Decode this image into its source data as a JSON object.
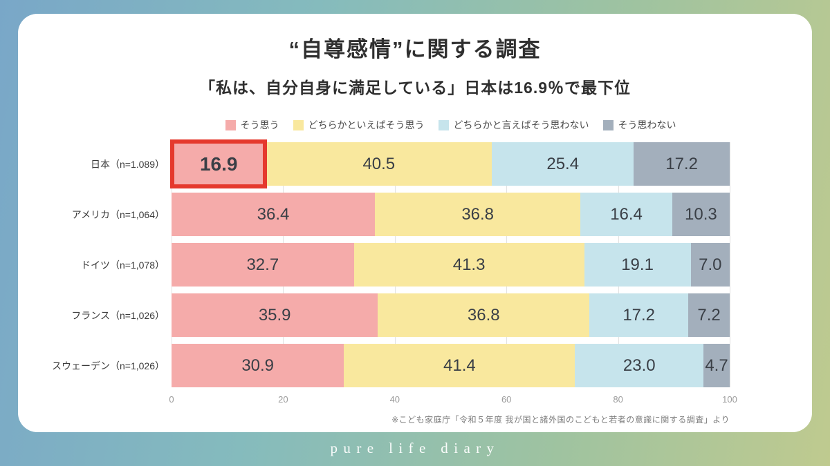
{
  "header": {
    "title": "“自尊感情”に関する調査",
    "subtitle": "「私は、自分自身に満足している」日本は16.9％で最下位"
  },
  "source": "※こども家庭庁「令和５年度 我が国と諸外国のこどもと若者の意識に関する調査」より",
  "footer": "pure life diary",
  "theme": {
    "card_background": "#ffffff",
    "highlight_red": "#e5392d",
    "value_text": "#3a3f46",
    "tick_text": "#9b9b9b",
    "background_gradient": [
      "#79a7c8",
      "#85bbbd",
      "#9fc3a0",
      "#bfca8f"
    ]
  },
  "chart_data": {
    "type": "bar",
    "subtype": "horizontal-stacked",
    "title": "“自尊感情”に関する調査",
    "xlabel": "",
    "ylabel": "",
    "xlim": [
      0,
      100
    ],
    "x_ticks": [
      0,
      20,
      40,
      60,
      80,
      100
    ],
    "grid": true,
    "legend_position": "top",
    "categories": [
      "日本（n=1.089）",
      "アメリカ（n=1,064）",
      "ドイツ（n=1,078）",
      "フランス（n=1,026）",
      "スウェーデン（n=1,026）"
    ],
    "series": [
      {
        "name": "そう思う",
        "color": "#f5abaa",
        "values": [
          16.9,
          36.4,
          32.7,
          35.9,
          30.9
        ]
      },
      {
        "name": "どちらかといえばそう思う",
        "color": "#f9e89e",
        "values": [
          40.5,
          36.8,
          41.3,
          36.8,
          41.4
        ]
      },
      {
        "name": "どちらかと言えばそう思わない",
        "color": "#c6e4ec",
        "values": [
          25.4,
          16.4,
          19.1,
          17.2,
          23.0
        ]
      },
      {
        "name": "そう思わない",
        "color": "#a3afbc",
        "values": [
          17.2,
          10.3,
          7.0,
          7.2,
          4.7
        ]
      }
    ],
    "highlight": {
      "row": 0,
      "segment": 0,
      "color": "#e5392d"
    }
  }
}
